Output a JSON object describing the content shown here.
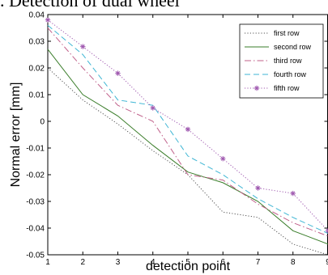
{
  "page": {
    "top_caption": ". Detection of dual wheel"
  },
  "chart_data": {
    "type": "line",
    "title": "",
    "xlabel": "detection point",
    "ylabel": "Normal error [mm]",
    "xlim": [
      1,
      9
    ],
    "ylim": [
      -0.05,
      0.04
    ],
    "x": [
      1,
      2,
      3,
      4,
      5,
      6,
      7,
      8,
      9
    ],
    "xticks": [
      1,
      2,
      3,
      4,
      5,
      6,
      7,
      8,
      9
    ],
    "yticks": [
      0.04,
      0.03,
      0.02,
      0.01,
      0,
      -0.01,
      -0.02,
      -0.03,
      -0.04,
      -0.05
    ],
    "ytick_labels": [
      "0.04",
      "0.03",
      "0.02",
      "0.01",
      "0",
      "-0.01",
      "-0.02",
      "-0.03",
      "-0.04",
      "-0.05"
    ],
    "grid": false,
    "legend_position": "top-right",
    "series": [
      {
        "name": "first row",
        "color": "#555555",
        "dash": "dotted",
        "marker": "none",
        "values": [
          0.02,
          0.008,
          -0.001,
          -0.011,
          -0.02,
          -0.034,
          -0.036,
          -0.046,
          -0.05
        ]
      },
      {
        "name": "second row",
        "color": "#3a7d2a",
        "dash": "solid",
        "marker": "none",
        "values": [
          0.027,
          0.01,
          0.002,
          -0.009,
          -0.019,
          -0.023,
          -0.03,
          -0.041,
          -0.046
        ]
      },
      {
        "name": "third row",
        "color": "#c0608a",
        "dash": "dashdot",
        "marker": "none",
        "values": [
          0.035,
          0.02,
          0.006,
          0.0,
          -0.02,
          -0.022,
          -0.031,
          -0.038,
          -0.043
        ]
      },
      {
        "name": "fourth row",
        "color": "#3fb6d4",
        "dash": "dashed",
        "marker": "none",
        "values": [
          0.036,
          0.025,
          0.008,
          0.006,
          -0.013,
          -0.02,
          -0.029,
          -0.036,
          -0.042
        ]
      },
      {
        "name": "fifth row",
        "color": "#a05ab0",
        "dash": "dotted",
        "marker": "star",
        "values": [
          0.038,
          0.028,
          0.018,
          0.005,
          -0.003,
          -0.014,
          -0.025,
          -0.027,
          -0.041
        ]
      }
    ]
  }
}
